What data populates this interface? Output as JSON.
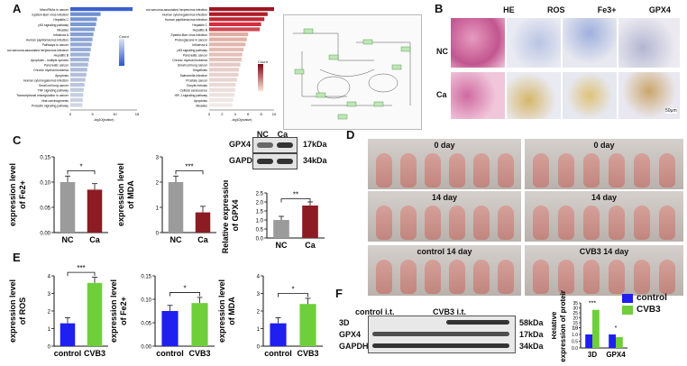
{
  "panels": {
    "A": "A",
    "B": "B",
    "C": "C",
    "D": "D",
    "E": "E",
    "F": "F"
  },
  "colors": {
    "blue": "#4f7bd6",
    "gray": "#9b9b9b",
    "darkred": "#8b1c24",
    "bright_blue": "#1f1ff0",
    "bright_green": "#6fcf3a"
  },
  "panelA": {
    "legend1_title": "Count",
    "legend1_values": [
      "12",
      "10",
      "8",
      "6",
      "4",
      "2"
    ],
    "legend2_title": "Count",
    "legend2_values": [
      "12",
      "10",
      "8",
      "6",
      "4",
      "2"
    ],
    "bars1": [
      "MicroRNAs in cancer",
      "Epstein-Barr virus infection",
      "Hepatitis C",
      "p53 signaling pathway",
      "Measles",
      "Influenza A",
      "Human papillomavirus infection",
      "Pathways in cancer",
      "Kaposi sarcoma-associated herpesvirus infection",
      "Hepatitis B",
      "Apoptosis - multiple species",
      "Pancreatic cancer",
      "Chronic myeloid leukemia",
      "Apoptosis",
      "Human cytomegalovirus infection",
      "Small cell lung cancer",
      "TNF signaling pathway",
      "Transcriptional misregulation in cancer",
      "Viral carcinogenesis",
      "Prolactin signaling pathway"
    ],
    "bars1_values": [
      14,
      6.8,
      6,
      5.8,
      5.5,
      5.2,
      5,
      4.8,
      4.6,
      4.4,
      4.2,
      4.0,
      3.8,
      3.6,
      3.4,
      3.2,
      3.0,
      2.9,
      2.8,
      2.7
    ],
    "bars2": [
      "Kaposi sarcoma-associated herpesvirus infection",
      "Human cytomegalovirus infection",
      "Human papillomavirus infection",
      "Hepatitis C",
      "Hepatitis B",
      "Epstein-Barr virus infection",
      "Proteoglycans in cancer",
      "Influenza A",
      "p53 signaling pathway",
      "Pancreatic cancer",
      "Chronic myeloid leukemia",
      "Small cell lung cancer",
      "Shigellosis",
      "Salmonella infection",
      "Prostate cancer",
      "Oocyte meiosis",
      "Cellular senescence",
      "HIF-1 signaling pathway",
      "Apoptosis",
      "Measles"
    ],
    "bars2_values": [
      10,
      9,
      8.5,
      8,
      7.8,
      6,
      5.8,
      5.6,
      5.3,
      5.1,
      5,
      4.8,
      4.6,
      4.5,
      4.3,
      4.1,
      4,
      3.9,
      3.7,
      3.6
    ],
    "axis1_ticks": [
      "0",
      "5",
      "10",
      "15"
    ],
    "axis1_label": "-log10(pvalue)",
    "axis2_ticks": [
      "0",
      "2",
      "4",
      "6",
      "8",
      "10"
    ],
    "axis2_label": "-log10(pvalue)"
  },
  "panelB": {
    "cols": [
      "HE",
      "ROS",
      "Fe3+",
      "GPX4"
    ],
    "rows": [
      "NC",
      "Ca"
    ],
    "scale": "50μm"
  },
  "chart_data": [
    {
      "id": "C1",
      "type": "bar",
      "categories": [
        "NC",
        "Ca"
      ],
      "values": [
        0.1,
        0.085
      ],
      "ylim": [
        0,
        0.15
      ],
      "yticks": [
        "0.00",
        "0.05",
        "0.10",
        "0.15"
      ],
      "ylabel": "expression level of Fe2+",
      "sig": "*"
    },
    {
      "id": "C2",
      "type": "bar",
      "categories": [
        "NC",
        "Ca"
      ],
      "values": [
        2.0,
        0.8
      ],
      "ylim": [
        0,
        3
      ],
      "yticks": [
        "0",
        "1",
        "2",
        "3"
      ],
      "ylabel": "expression level of MDA",
      "sig": "***"
    },
    {
      "id": "C3",
      "type": "bar",
      "categories": [
        "NC",
        "Ca"
      ],
      "values": [
        1.0,
        1.8
      ],
      "ylim": [
        0,
        2.5
      ],
      "yticks": [
        "0.0",
        "0.5",
        "1.0",
        "1.5",
        "2.0",
        "2.5"
      ],
      "ylabel": "Relative expression of GPX4",
      "sig": "**"
    },
    {
      "id": "E1",
      "type": "bar",
      "categories": [
        "control",
        "CVB3"
      ],
      "values": [
        1.3,
        3.6
      ],
      "ylim": [
        0,
        4
      ],
      "yticks": [
        "0",
        "1",
        "2",
        "3",
        "4"
      ],
      "ylabel": "expression level of ROS",
      "sig": "***"
    },
    {
      "id": "E2",
      "type": "bar",
      "categories": [
        "control",
        "CVB3"
      ],
      "values": [
        0.075,
        0.092
      ],
      "ylim": [
        0,
        0.15
      ],
      "yticks": [
        "0.00",
        "0.05",
        "0.10",
        "0.15"
      ],
      "ylabel": "expression level of Fe2+",
      "sig": "*"
    },
    {
      "id": "E3",
      "type": "bar",
      "categories": [
        "control",
        "CVB3"
      ],
      "values": [
        1.3,
        2.4
      ],
      "ylim": [
        0,
        4
      ],
      "yticks": [
        "0",
        "1",
        "2",
        "3",
        "4"
      ],
      "ylabel": "expression level of MDA",
      "sig": "*"
    },
    {
      "id": "F1",
      "type": "bar",
      "categories": [
        "3D",
        "GPX4"
      ],
      "series": [
        {
          "name": "control",
          "values": [
            1.0,
            1.0
          ]
        },
        {
          "name": "CVB3",
          "values": [
            28,
            0.8
          ]
        }
      ],
      "yticks": [
        "0.0",
        "0.5",
        "1.0",
        "1.5",
        "10",
        "15",
        "20",
        "25",
        "30",
        "35"
      ],
      "ylabel": "Relative expression of protein",
      "sig": [
        "***",
        "*"
      ]
    }
  ],
  "blotC": {
    "cols": [
      "NC",
      "Ca"
    ],
    "rows": [
      "GPX4",
      "GAPDH"
    ],
    "kda": [
      "17kDa",
      "34kDa"
    ]
  },
  "panelD": {
    "labels_left": [
      "0 day",
      "14 day",
      "control 14 day"
    ],
    "labels_right": [
      "0 day",
      "14 day",
      "CVB3 14 day"
    ]
  },
  "blotF": {
    "groups": [
      "control i.t.",
      "CVB3 i.t."
    ],
    "rows": [
      "3D",
      "GPX4",
      "GAPDH"
    ],
    "kda": [
      "58kDa",
      "17kDa",
      "34kDa"
    ]
  },
  "legendF": [
    "control",
    "CVB3"
  ]
}
